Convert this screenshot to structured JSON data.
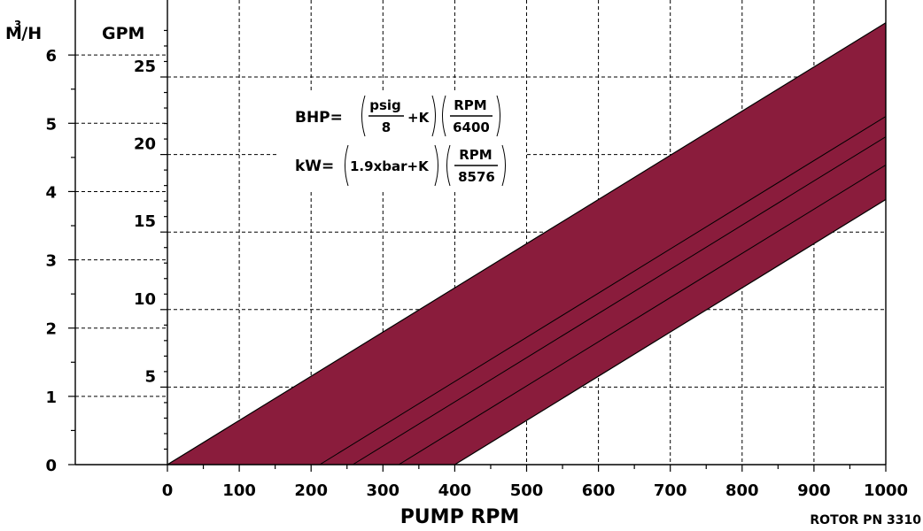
{
  "chart_data": {
    "type": "area",
    "xlabel": "PUMP RPM",
    "x_ticks": [
      0,
      100,
      200,
      300,
      400,
      500,
      600,
      700,
      800,
      900,
      1000
    ],
    "xlim": [
      0,
      1000
    ],
    "y_left_unit": "M3/H",
    "y_left_ticks": [
      0,
      1,
      2,
      3,
      4,
      5,
      6
    ],
    "y_right_unit": "GPM",
    "y_right_ticks": [
      5,
      10,
      15,
      20,
      25
    ],
    "ylim_gpm": [
      0,
      29.5
    ],
    "gpm_per_m3h": 4.403,
    "capacity_band": {
      "upper_curve": [
        [
          0,
          0
        ],
        [
          1000,
          28.5
        ]
      ],
      "lower_curve": [
        [
          400,
          0
        ],
        [
          1000,
          17.1
        ]
      ]
    },
    "slip_lines": [
      {
        "x0": 212,
        "slope_gpm_per_rpm": 0.0285
      },
      {
        "x0": 258,
        "slope_gpm_per_rpm": 0.0285
      },
      {
        "x0": 322,
        "slope_gpm_per_rpm": 0.0285
      }
    ],
    "grid": true,
    "footnote": "ROTOR PN 3310"
  },
  "formula": {
    "bhp": {
      "lhs": "BHP=",
      "frac1_num": "psig",
      "frac1_den": "8",
      "plus_k": "+K",
      "frac2_num": "RPM",
      "frac2_den": "6400"
    },
    "kw": {
      "lhs": "kW=",
      "term": "1.9xbar+K",
      "frac_num": "RPM",
      "frac_den": "8576"
    }
  },
  "units": {
    "m3h_base": "M",
    "m3h_sup": "3",
    "m3h_tail": "/H",
    "gpm": "GPM"
  }
}
